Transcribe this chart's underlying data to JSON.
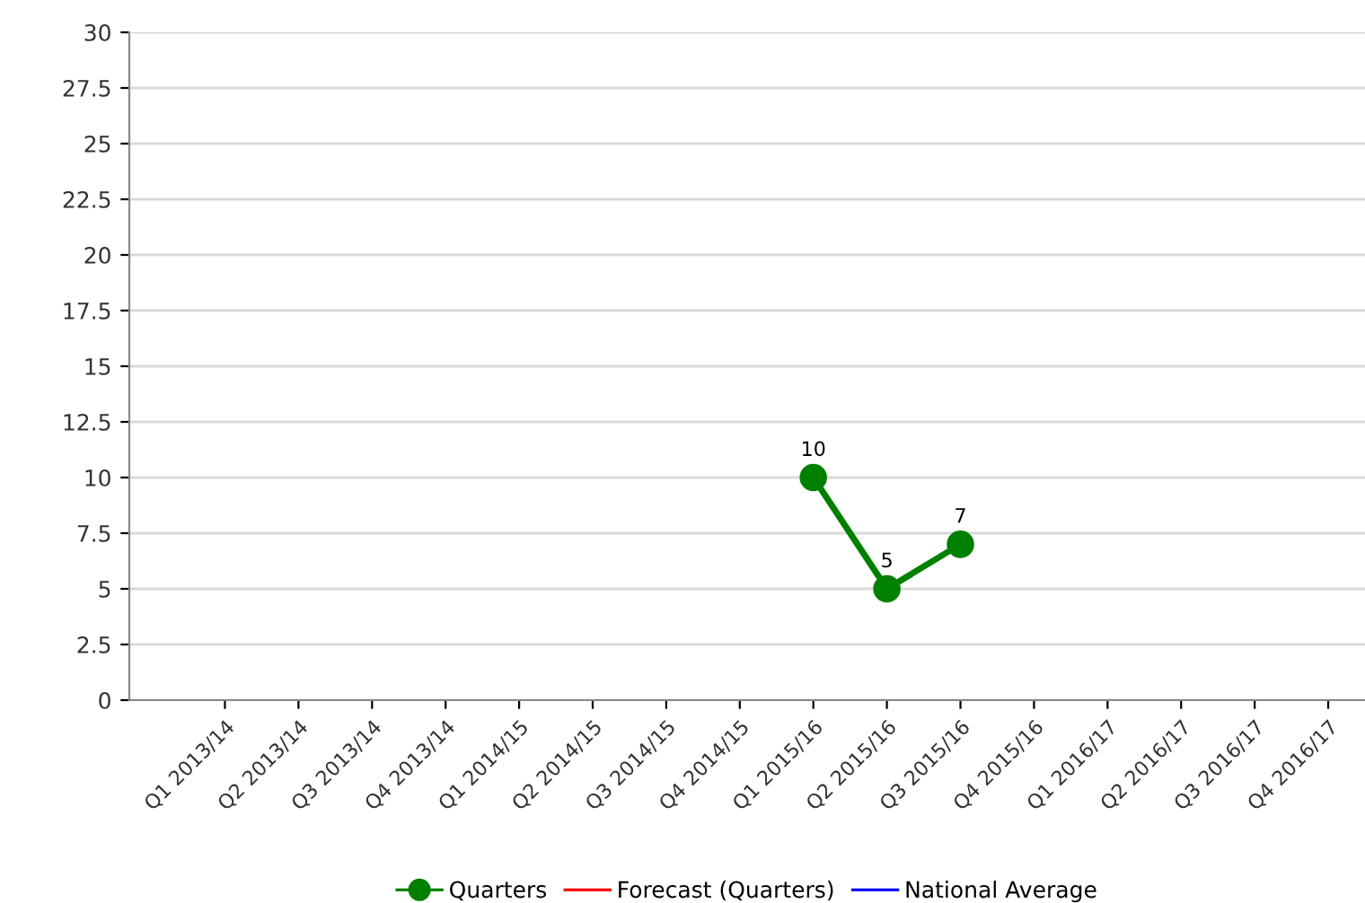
{
  "chart_data": {
    "type": "line",
    "categories": [
      "Q1 2013/14",
      "Q2 2013/14",
      "Q3 2013/14",
      "Q4 2013/14",
      "Q1 2014/15",
      "Q2 2014/15",
      "Q3 2014/15",
      "Q4 2014/15",
      "Q1 2015/16",
      "Q2 2015/16",
      "Q3 2015/16",
      "Q4 2015/16",
      "Q1 2016/17",
      "Q2 2016/17",
      "Q3 2016/17",
      "Q4 2016/17"
    ],
    "series": [
      {
        "name": "Quarters",
        "color": "#008000",
        "marker": "circle",
        "values": [
          null,
          null,
          null,
          null,
          null,
          null,
          null,
          null,
          10,
          5,
          7,
          null,
          null,
          null,
          null,
          null
        ]
      },
      {
        "name": "Forecast (Quarters)",
        "color": "#ff0000",
        "marker": "none",
        "values": [
          null,
          null,
          null,
          null,
          null,
          null,
          null,
          null,
          null,
          null,
          null,
          null,
          null,
          null,
          null,
          null
        ]
      },
      {
        "name": "National Average",
        "color": "#0000ff",
        "marker": "none",
        "values": [
          null,
          null,
          null,
          null,
          null,
          null,
          null,
          null,
          null,
          null,
          null,
          null,
          null,
          null,
          null,
          null
        ]
      }
    ],
    "ylim": [
      0,
      30
    ],
    "yticks": [
      0,
      2.5,
      5,
      7.5,
      10,
      12.5,
      15,
      17.5,
      20,
      22.5,
      25,
      27.5,
      30
    ],
    "grid": "y",
    "legend": "bottom",
    "data_labels": true
  }
}
